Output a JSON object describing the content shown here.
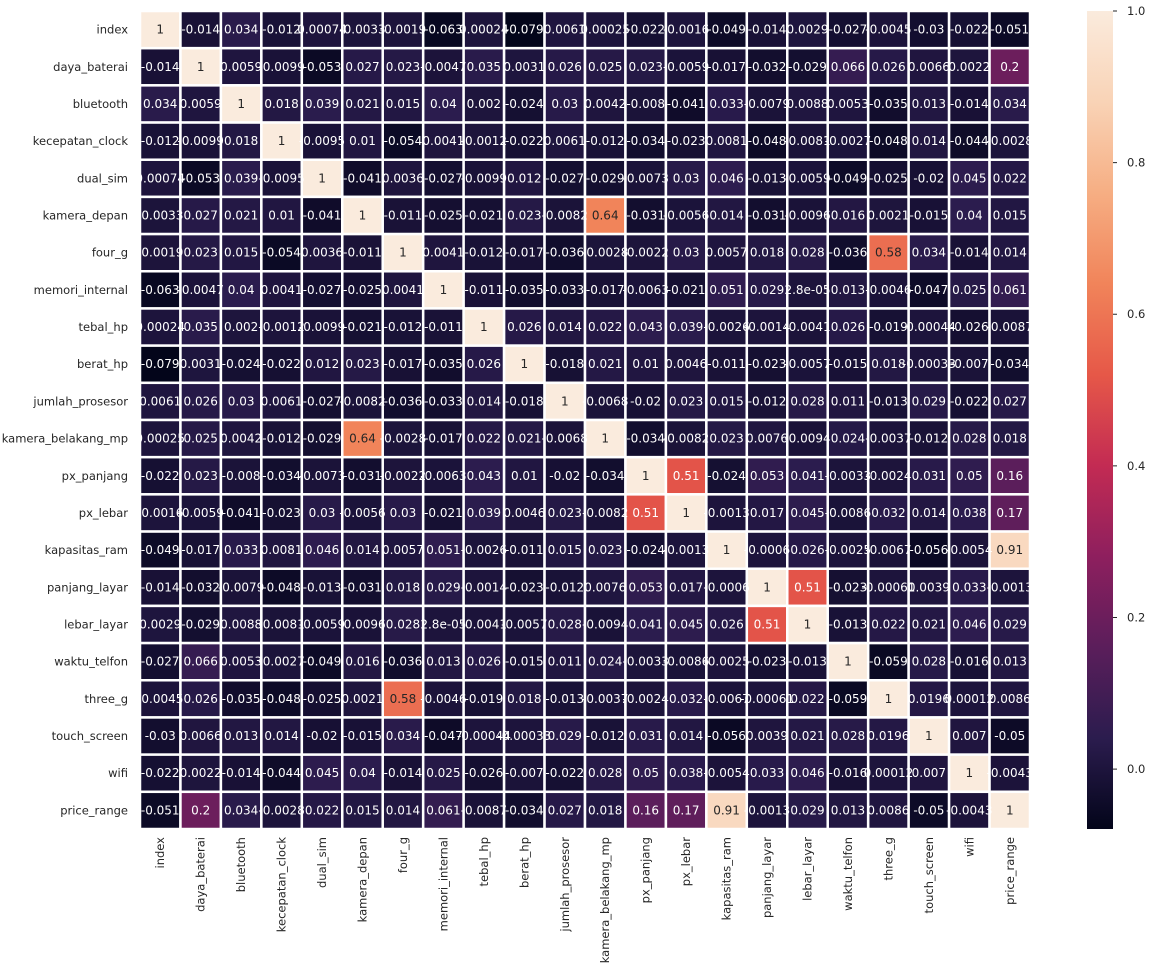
{
  "chart_data": {
    "type": "heatmap",
    "title": "",
    "xlabel": "",
    "ylabel": "",
    "labels": [
      "index",
      "daya_baterai",
      "bluetooth",
      "kecepatan_clock",
      "dual_sim",
      "kamera_depan",
      "four_g",
      "memori_internal",
      "tebal_hp",
      "berat_hp",
      "jumlah_prosesor",
      "kamera_belakang_mp",
      "px_panjang",
      "px_lebar",
      "kapasitas_ram",
      "panjang_layar",
      "lebar_layar",
      "waktu_telfon",
      "three_g",
      "touch_screen",
      "wifi",
      "price_range"
    ],
    "annotations": [
      [
        "1",
        "-0.014",
        "0.034",
        "-0.012",
        "0.00074",
        "-0.0033",
        "-0.0019",
        "-0.063",
        "0.00024",
        "-0.079",
        "0.0061",
        "0.00025",
        "-0.022",
        "-0.0016",
        "-0.049",
        "-0.014",
        "0.0029",
        "-0.027",
        "-0.0045",
        "-0.03",
        "-0.022",
        "-0.051"
      ],
      [
        "-0.014",
        "1",
        "0.0059",
        "-0.0099",
        "-0.053",
        "0.027",
        "0.023",
        "-0.0047",
        "0.035",
        "0.0031",
        "0.026",
        "0.025",
        "0.023",
        "-0.0059",
        "-0.017",
        "-0.032",
        "-0.029",
        "0.066",
        "0.026",
        "0.0066",
        "0.0022",
        "0.2"
      ],
      [
        "0.034",
        "0.0059",
        "1",
        "0.018",
        "0.039",
        "0.021",
        "0.015",
        "0.04",
        "0.002",
        "-0.024",
        "0.03",
        "0.0042",
        "-0.008",
        "-0.041",
        "0.033",
        "-0.0079",
        "0.0088",
        "0.0053",
        "-0.035",
        "0.013",
        "-0.014",
        "0.034"
      ],
      [
        "-0.012",
        "-0.0099",
        "0.018",
        "1",
        "-0.0095",
        "0.01",
        "-0.054",
        "0.0041",
        "-0.0012",
        "-0.022",
        "0.0061",
        "-0.012",
        "-0.034",
        "-0.023",
        "0.0081",
        "-0.048",
        "-0.0081",
        "-0.0027",
        "-0.048",
        "0.014",
        "-0.044",
        "-0.0028"
      ],
      [
        "0.00074",
        "-0.053",
        "0.039",
        "-0.0095",
        "1",
        "-0.041",
        "0.0036",
        "-0.027",
        "-0.0099",
        "0.012",
        "-0.027",
        "-0.029",
        "-0.0073",
        "0.03",
        "0.046",
        "-0.013",
        "-0.0059",
        "-0.049",
        "-0.025",
        "-0.02",
        "0.045",
        "0.022"
      ],
      [
        "-0.0033",
        "0.027",
        "0.021",
        "0.01",
        "-0.041",
        "1",
        "-0.011",
        "-0.025",
        "-0.021",
        "0.023",
        "-0.0082",
        "0.64",
        "-0.031",
        "-0.0056",
        "0.014",
        "-0.031",
        "-0.0096",
        "0.016",
        "0.0021",
        "-0.015",
        "0.04",
        "0.015"
      ],
      [
        "-0.0019",
        "0.023",
        "0.015",
        "-0.054",
        "0.0036",
        "-0.011",
        "1",
        "0.0041",
        "-0.012",
        "-0.017",
        "-0.036",
        "-0.0028",
        "-0.0022",
        "0.03",
        "0.0057",
        "0.018",
        "0.028",
        "-0.036",
        "0.58",
        "0.034",
        "-0.014",
        "0.014"
      ],
      [
        "-0.063",
        "-0.0047",
        "0.04",
        "0.0041",
        "-0.027",
        "-0.025",
        "0.0041",
        "1",
        "-0.011",
        "-0.035",
        "-0.033",
        "-0.017",
        "-0.0063",
        "-0.021",
        "0.051",
        "0.029",
        "2.8e-05",
        "0.013",
        "-0.0046",
        "-0.047",
        "0.025",
        "0.061"
      ],
      [
        "0.00024",
        "0.035",
        "0.002",
        "-0.0012",
        "-0.0099",
        "-0.021",
        "-0.012",
        "-0.011",
        "1",
        "0.026",
        "0.014",
        "0.022",
        "0.043",
        "0.039",
        "-0.0026",
        "-0.0014",
        "-0.0041",
        "0.026",
        "-0.019",
        "-0.00044",
        "-0.026",
        "-0.0087"
      ],
      [
        "-0.079",
        "0.0031",
        "-0.024",
        "-0.022",
        "0.012",
        "0.023",
        "-0.017",
        "-0.035",
        "0.026",
        "1",
        "-0.018",
        "0.021",
        "0.01",
        "0.0046",
        "-0.011",
        "-0.023",
        "-0.0057",
        "-0.015",
        "0.018",
        "-0.00033",
        "-0.007",
        "-0.034"
      ],
      [
        "0.0061",
        "0.026",
        "0.03",
        "0.0061",
        "-0.027",
        "-0.0082",
        "-0.036",
        "-0.033",
        "0.014",
        "-0.018",
        "1",
        "-0.0068",
        "-0.02",
        "0.023",
        "0.015",
        "-0.012",
        "0.028",
        "0.011",
        "-0.013",
        "0.029",
        "-0.022",
        "0.027"
      ],
      [
        "0.00025",
        "0.025",
        "0.0042",
        "-0.012",
        "-0.029",
        "0.64",
        "-0.0028",
        "-0.017",
        "0.022",
        "0.021",
        "-0.0068",
        "1",
        "-0.034",
        "-0.0082",
        "0.023",
        "0.0076",
        "-0.0094",
        "0.024",
        "-0.0037",
        "-0.012",
        "0.028",
        "0.018"
      ],
      [
        "-0.022",
        "0.023",
        "-0.008",
        "-0.034",
        "-0.0073",
        "-0.031",
        "-0.0022",
        "-0.0063",
        "0.043",
        "0.01",
        "-0.02",
        "-0.034",
        "1",
        "0.51",
        "-0.024",
        "0.053",
        "0.041",
        "-0.0033",
        "-0.0024",
        "0.031",
        "0.05",
        "0.16"
      ],
      [
        "-0.0016",
        "-0.0059",
        "-0.041",
        "-0.023",
        "0.03",
        "-0.0056",
        "0.03",
        "-0.021",
        "0.039",
        "0.0046",
        "0.023",
        "-0.0082",
        "0.51",
        "1",
        "-0.0013",
        "0.017",
        "0.045",
        "-0.0086",
        "0.032",
        "0.014",
        "0.038",
        "0.17"
      ],
      [
        "-0.049",
        "-0.017",
        "0.033",
        "0.0081",
        "0.046",
        "0.014",
        "0.0057",
        "0.051",
        "-0.0026",
        "-0.011",
        "0.015",
        "0.023",
        "-0.024",
        "-0.0013",
        "1",
        "-0.0006",
        "0.026",
        "-0.0025",
        "-0.0067",
        "-0.056",
        "-0.0054",
        "0.91"
      ],
      [
        "-0.014",
        "-0.032",
        "-0.0079",
        "-0.048",
        "-0.013",
        "-0.031",
        "0.018",
        "0.029",
        "-0.0014",
        "-0.023",
        "-0.012",
        "0.0076",
        "0.053",
        "0.017",
        "-0.0006",
        "1",
        "0.51",
        "-0.023",
        "-0.00061",
        "0.0039",
        "0.033",
        "-0.0013"
      ],
      [
        "0.0029",
        "-0.029",
        "0.0088",
        "-0.0081",
        "-0.0059",
        "-0.0096",
        "0.028",
        "2.8e-05",
        "-0.0041",
        "-0.0057",
        "0.028",
        "-0.0094",
        "0.041",
        "0.045",
        "0.026",
        "0.51",
        "1",
        "-0.013",
        "0.022",
        "0.021",
        "0.046",
        "0.029"
      ],
      [
        "-0.027",
        "0.066",
        "0.0053",
        "-0.0027",
        "-0.049",
        "0.016",
        "-0.036",
        "0.013",
        "0.026",
        "-0.015",
        "0.011",
        "0.024",
        "-0.0033",
        "-0.0086",
        "-0.0025",
        "-0.023",
        "-0.013",
        "1",
        "-0.059",
        "0.028",
        "-0.016",
        "0.013"
      ],
      [
        "-0.0045",
        "0.026",
        "-0.035",
        "-0.048",
        "-0.025",
        "0.0021",
        "0.58",
        "-0.0046",
        "-0.019",
        "0.018",
        "-0.013",
        "-0.0037",
        "-0.0024",
        "0.032",
        "-0.0067",
        "-0.00061",
        "0.022",
        "-0.059",
        "1",
        "0.0196",
        "0.00012",
        "0.0086"
      ],
      [
        "-0.03",
        "0.0066",
        "0.013",
        "0.014",
        "-0.02",
        "-0.015",
        "0.034",
        "-0.047",
        "-0.00044",
        "-0.00033",
        "0.029",
        "-0.012",
        "0.031",
        "0.014",
        "-0.056",
        "0.0039",
        "0.021",
        "0.028",
        "0.0196",
        "1",
        "0.007",
        "-0.05"
      ],
      [
        "-0.022",
        "0.0022",
        "-0.014",
        "-0.044",
        "0.045",
        "0.04",
        "-0.014",
        "0.025",
        "-0.026",
        "-0.007",
        "-0.022",
        "0.028",
        "0.05",
        "0.038",
        "-0.0054",
        "0.033",
        "0.046",
        "-0.016",
        "0.00012",
        "0.007",
        "1",
        "-0.0043"
      ],
      [
        "-0.051",
        "0.2",
        "0.034",
        "-0.0028",
        "0.022",
        "0.015",
        "0.014",
        "0.061",
        "-0.0087",
        "-0.034",
        "0.027",
        "0.018",
        "0.16",
        "0.17",
        "0.91",
        "-0.0013",
        "0.029",
        "0.013",
        "0.0086",
        "-0.05",
        "-0.0043",
        "1"
      ]
    ],
    "colorbar": {
      "vmin": -0.079,
      "vmax": 1.0,
      "ticks": [
        "0.0",
        "0.2",
        "0.4",
        "0.6",
        "0.8",
        "1.0"
      ],
      "colormap": "rocket",
      "colormap_stops": [
        "#03051a",
        "#2b1c4e",
        "#5b1e5b",
        "#8e1f5e",
        "#c32b53",
        "#e65848",
        "#f1845a",
        "#f6ae83",
        "#f9d3b6",
        "#faebdd"
      ]
    },
    "grid": false,
    "cell_separator_color": "#ffffff",
    "annotation_colors": {
      "dark_cell_text": "#ffffff",
      "light_cell_text": "#262626"
    }
  }
}
